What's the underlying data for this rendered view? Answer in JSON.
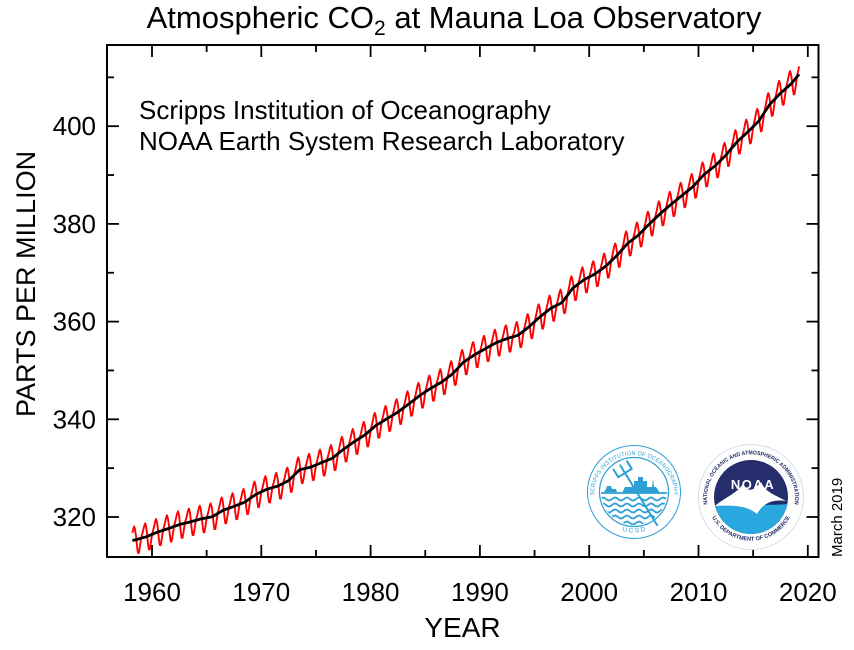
{
  "title": {
    "pre": "Atmospheric CO",
    "sub": "2",
    "post": " at Mauna Loa Observatory"
  },
  "annotation": {
    "line1": "Scripps Institution of Oceanography",
    "line2": "NOAA Earth System Research Laboratory"
  },
  "axes": {
    "x_label": "YEAR",
    "y_label": "PARTS PER MILLION"
  },
  "watermark": "March 2019",
  "logos": {
    "scripps": {
      "ring_top": "SCRIPPS INSTITUTION OF OCEANOGRAPHY",
      "ring_bottom": "U C S D",
      "color": "#2e9fd4"
    },
    "noaa": {
      "ring_top": "NATIONAL OCEANIC AND ATMOSPHERIC ADMINISTRATION",
      "ring_bottom": "U.S. DEPARTMENT OF COMMERCE",
      "wordmark": "NOAA",
      "navy": "#252d6d",
      "blue": "#29a8e0"
    }
  },
  "chart_data": {
    "type": "line",
    "title": "Atmospheric CO2 at Mauna Loa Observatory",
    "xlabel": "YEAR",
    "ylabel": "PARTS PER MILLION",
    "xlim": [
      1955.9,
      2020.9
    ],
    "ylim": [
      311.5,
      416.5
    ],
    "grid": false,
    "legend": "none",
    "x_major_ticks": [
      1960,
      1970,
      1980,
      1990,
      2000,
      2010,
      2020
    ],
    "x_minor_ticks": [
      1965,
      1975,
      1985,
      1995,
      2005,
      2015
    ],
    "y_major_ticks": [
      320,
      340,
      360,
      380,
      400
    ],
    "y_minor_ticks": [
      330,
      350,
      370,
      390,
      410
    ],
    "series": [
      {
        "name": "monthly mean CO2 (seasonal cycle)",
        "color": "#ff0000"
      },
      {
        "name": "seasonally corrected trend",
        "color": "#000000"
      }
    ],
    "data_start": "1958-03",
    "data_end": "2019-03",
    "annual_mean_years_start": 1958,
    "annual_mean_co2": [
      315.34,
      315.97,
      316.91,
      317.64,
      318.45,
      318.99,
      319.62,
      320.04,
      321.37,
      322.18,
      323.05,
      324.62,
      325.68,
      326.32,
      327.46,
      329.68,
      330.19,
      331.12,
      332.03,
      333.84,
      335.41,
      336.84,
      338.76,
      340.12,
      341.48,
      343.15,
      344.87,
      346.35,
      347.61,
      349.31,
      351.69,
      353.2,
      354.45,
      355.7,
      356.54,
      357.21,
      358.96,
      360.97,
      362.74,
      363.88,
      366.84,
      368.54,
      369.71,
      371.32,
      373.45,
      375.98,
      377.7,
      379.98,
      382.09,
      384.02,
      385.83,
      387.64,
      390.1,
      391.85,
      394.06,
      396.74,
      398.81,
      401.01,
      404.41,
      406.76,
      408.72,
      411.44
    ],
    "seasonal_offsets_by_month": [
      0.3,
      0.9,
      1.6,
      2.4,
      2.8,
      2.1,
      0.6,
      -1.4,
      -2.8,
      -2.9,
      -1.9,
      -0.7
    ]
  }
}
